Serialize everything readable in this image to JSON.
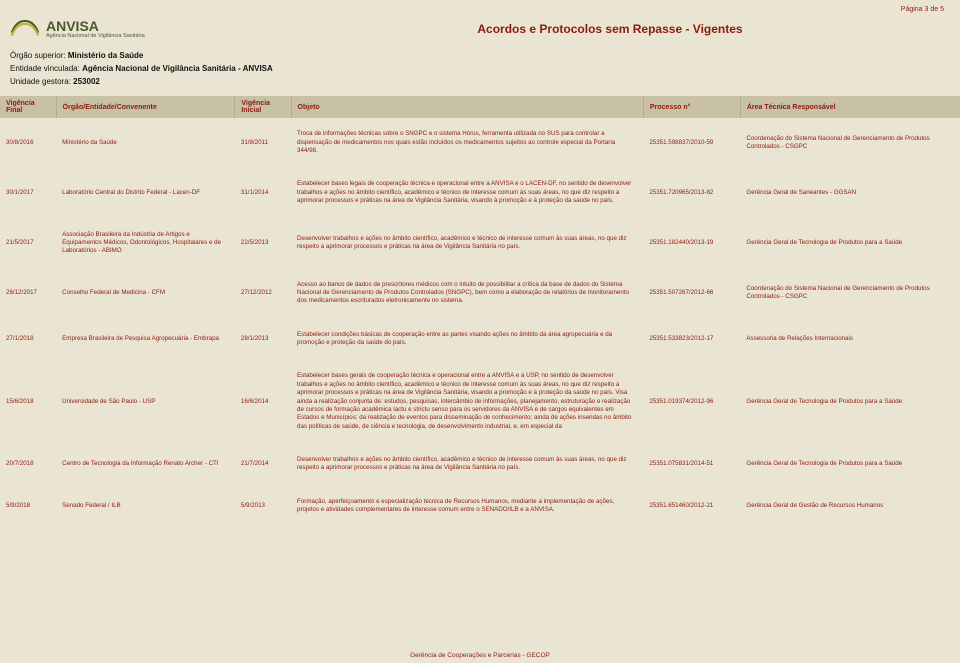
{
  "page_indicator": "Página 3 de 5",
  "logo": {
    "name": "ANVISA",
    "sub": "Agência Nacional de Vigilância Sanitária"
  },
  "title": "Acordos e Protocolos sem Repasse - Vigentes",
  "meta": {
    "l1_label": "Órgão superior: ",
    "l1_value": "Ministério da Saúde",
    "l2_label": "Entidade vinculada: ",
    "l2_value": "Agência Nacional de Vigilância Sanitária - ANVISA",
    "l3_label": "Unidade gestora: ",
    "l3_value": "253002"
  },
  "columns": {
    "c0": "Vigência Final",
    "c1": "Órgão/Entidade/Convenente",
    "c2": "Vigência Inicial",
    "c3": "Objeto",
    "c4": "Processo n°",
    "c5": "Área Técnica Responsável"
  },
  "rows": [
    {
      "vfinal": "30/8/2016",
      "orgao": "Ministério da Saúde",
      "vinicial": "31/8/2011",
      "objeto": "Troca de informações técnicas sobre o SNGPC e o sistema Hórus, ferramenta utilizada no SUS para controlar a dispensação de medicamentos nos quais estão incluídos os medicamentos sujeitos ao controle especial da Portaria 344/98.",
      "processo": "25351.598837/2010-59",
      "area": "Coordenação do Sistema Nacional de Gerenciamento de Produtos Controlados - CSGPC"
    },
    {
      "vfinal": "30/1/2017",
      "orgao": "Laboratório Central do Distrito Federal - Lacen-DF",
      "vinicial": "31/1/2014",
      "objeto": "Estabelecer bases legais de cooperação técnica e operacional entre a ANVISA e o LACEN-DF, no sentido de desenvolver trabalhos e ações no âmbito científico, acadêmico e técnico de interesse comum às suas áreas, no que diz respeito a aprimorar processos e práticas na área de Vigilância Sanitária, visando à promoção e à proteção da saúde no país.",
      "processo": "25351.720965/2013-82",
      "area": "Gerência Geral de Saneantes - GGSAN"
    },
    {
      "vfinal": "21/5/2017",
      "orgao": "Associação Brasileira da Indústria de Artigos e Equipamentos Médicos, Odontológicos, Hospitalares e de Laboratórios - ABIMO",
      "vinicial": "22/5/2013",
      "objeto": "Desenvolver trabalhos e ações no âmbito científico, acadêmico e técnico de interesse comum às suas áreas, no que diz respeito a aprimorar processos e práticas na área de Vigilância Sanitária no país.",
      "processo": "25351.182440/2013-19",
      "area": "Gerência Geral de Tecnologia de Produtos para a Saúde"
    },
    {
      "vfinal": "26/12/2017",
      "orgao": "Conselho Federal de Medicina - CFM",
      "vinicial": "27/12/2012",
      "objeto": "Acesso ao banco de dados de prescritores médicos com o intuito de possibilitar a crítica da base de dados do Sistema Nacional de Gerenciamento de Produtos Controlados (SNGPC), bem como a elaboração de relatórios de monitoramento dos medicamentos escriturados eletronicamente no sistema.",
      "processo": "25351.507267/2012-66",
      "area": "Coordenação do Sistema Nacional de Gerenciamento de Produtos Controlados - CSGPC"
    },
    {
      "vfinal": "27/1/2018",
      "orgao": "Empresa Brasileira de Pesquisa Agropecuária - Embrapa",
      "vinicial": "28/1/2013",
      "objeto": "Estabelecer condições básicas de cooperação entre as partes visando ações no âmbito da área agropecuária e da promoção e proteção da saúde do país.",
      "processo": "25351.533823/2012-17",
      "area": "Assessoria de Relações Internacionais"
    },
    {
      "vfinal": "15/6/2018",
      "orgao": "Universidade de São Paulo - USP",
      "vinicial": "16/6/2014",
      "objeto": "Estabelecer bases gerais de cooperação técnica e operacional entre a ANVISA e a USP, no sentido de desenvolver trabalhos e ações no âmbito científico, acadêmico e técnico de interesse comum às suas áreas, no que diz respeito a aprimorar processos e práticas na área de Vigilância Sanitária, visando a promoção e a proteção da saúde no país. Visa ainda a realização conjunta de: estudos, pesquisas, intercâmbio de informações, planejamento, estruturação e realização de cursos de formação acadêmica lactu e strictu senso para os servidores da ANVISA e de cargos equivalentes em Estados e Municípios; da realização de eventos para disseminação de conhecimento; ainda de ações inseridas no âmbito das políticas de saúde, de ciência e tecnologia, de desenvolvimento industrial, e, em especial da",
      "processo": "25351.019374/2012-96",
      "area": "Gerência Geral de Tecnologia de Produtos para a Saúde"
    },
    {
      "vfinal": "20/7/2018",
      "orgao": "Centro de Tecnologia da Informação Renato Archer - CTI",
      "vinicial": "21/7/2014",
      "objeto": "Desenvolver trabalhos e ações no âmbito científico, acadêmico e técnico de interesse comum às suas áreas, no que diz respeito a aprimorar processos e práticas na área de Vigilância Sanitária no país.",
      "processo": "25351.075831/2014-51",
      "area": "Gerência Geral de Tecnologia de Produtos para a Saúde"
    },
    {
      "vfinal": "5/9/2018",
      "orgao": "Senado Federal / ILB",
      "vinicial": "5/9/2013",
      "objeto": "Formação, aperfeiçoamento e especialização técnica de Recursos Humanos, mediante a implementação de ações, projetos e atividades complementares de interesse comum entre o SENADO/ILB e a ANVISA.",
      "processo": "25351.651460/2012-21",
      "area": "Gerência Geral de Gestão de Recursos Humanos"
    }
  ],
  "footer": "Gerência de Cooperações e Parcerias - GECOP"
}
